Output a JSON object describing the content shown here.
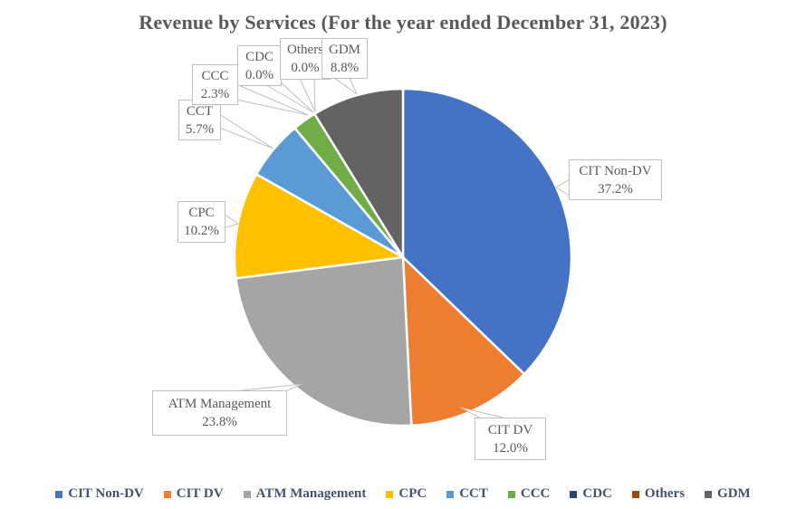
{
  "title": "Revenue by Services (For the year ended December 31, 2023)",
  "chart_data": {
    "type": "pie",
    "title": "Revenue by Services (For the year ended December 31, 2023)",
    "unit": "percent",
    "start_angle_deg": 0,
    "direction": "clockwise",
    "slices": [
      {
        "label": "CIT Non-DV",
        "value": 37.2,
        "color": "#4472C4"
      },
      {
        "label": "CIT DV",
        "value": 12.0,
        "color": "#ED7D31"
      },
      {
        "label": "ATM Management",
        "value": 23.8,
        "color": "#A5A5A5"
      },
      {
        "label": "CPC",
        "value": 10.2,
        "color": "#FFC000"
      },
      {
        "label": "CCT",
        "value": 5.7,
        "color": "#5B9BD5"
      },
      {
        "label": "CCC",
        "value": 2.3,
        "color": "#70AD47"
      },
      {
        "label": "CDC",
        "value": 0.0,
        "color": "#264478"
      },
      {
        "label": "Others",
        "value": 0.0,
        "color": "#9E480E"
      },
      {
        "label": "GDM",
        "value": 8.8,
        "color": "#636363"
      }
    ],
    "data_labels": [
      "CIT Non-DV 37.2%",
      "CIT DV 12.0%",
      "ATM Management 23.8%",
      "CPC 10.2%",
      "CCT 5.7%",
      "CCC 2.3%",
      "CDC 0.0%",
      "Others 0.0%",
      "GDM 8.8%"
    ],
    "legend": {
      "position": "bottom",
      "entries": [
        "CIT Non-DV",
        "CIT DV",
        "ATM Management",
        "CPC",
        "CCT",
        "CCC",
        "CDC",
        "Others",
        "GDM"
      ]
    },
    "label_style": {
      "box_fill": "#FFFFFF",
      "box_border": "#BFBFBF",
      "text_color": "#595959"
    },
    "slice_border_color": "#FFFFFF"
  },
  "colors": {
    "title_text": "#595959",
    "legend_text": "#44546A",
    "leader_line": "#BFBFBF"
  }
}
